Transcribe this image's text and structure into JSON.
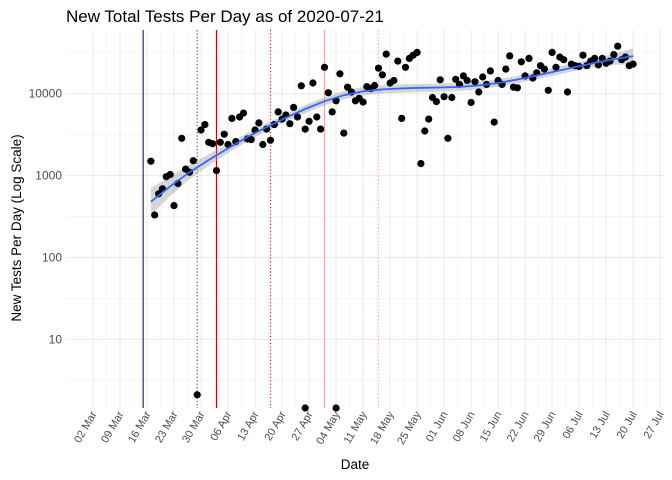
{
  "chart_data": {
    "type": "scatter",
    "title": "New Total Tests Per Day as of 2020-07-21",
    "xlabel": "Date",
    "ylabel": "New Tests Per Day (Log Scale)",
    "y_scale": "log10",
    "grid": true,
    "legend": "none",
    "x_ticks": [
      "02 Mar",
      "09 Mar",
      "16 Mar",
      "23 Mar",
      "30 Mar",
      "06 Apr",
      "13 Apr",
      "20 Apr",
      "27 Apr",
      "04 May",
      "11 May",
      "18 May",
      "25 May",
      "01 Jun",
      "08 Jun",
      "15 Jun",
      "22 Jun",
      "29 Jun",
      "06 Jul",
      "13 Jul",
      "20 Jul",
      "27 Jul"
    ],
    "x_tick_dates": [
      "2020-03-02",
      "2020-03-09",
      "2020-03-16",
      "2020-03-23",
      "2020-03-30",
      "2020-04-06",
      "2020-04-13",
      "2020-04-20",
      "2020-04-27",
      "2020-05-04",
      "2020-05-11",
      "2020-05-18",
      "2020-05-25",
      "2020-06-01",
      "2020-06-08",
      "2020-06-15",
      "2020-06-22",
      "2020-06-29",
      "2020-07-06",
      "2020-07-13",
      "2020-07-20",
      "2020-07-27"
    ],
    "y_ticks": [
      10,
      100,
      1000,
      10000
    ],
    "y_tick_labels": [
      "10",
      "100",
      "1000",
      "10000"
    ],
    "xlim": [
      "2020-02-24",
      "2020-07-28"
    ],
    "ylim": [
      1.45,
      60000
    ],
    "vlines": [
      {
        "date": "2020-03-15",
        "color": "#191970",
        "style": "solid"
      },
      {
        "date": "2020-03-29",
        "color": "#3b3b9a",
        "style": "dotted"
      },
      {
        "date": "2020-04-03",
        "color": "#cc0000",
        "style": "solid"
      },
      {
        "date": "2020-04-17",
        "color": "#cc2a2a",
        "style": "dotted"
      },
      {
        "date": "2020-05-01",
        "color": "#f2a6a6",
        "style": "solid"
      },
      {
        "date": "2020-05-15",
        "color": "#f2a6a6",
        "style": "dotted"
      }
    ],
    "points": [
      [
        "2020-03-17",
        1500
      ],
      [
        "2020-03-18",
        330
      ],
      [
        "2020-03-19",
        600
      ],
      [
        "2020-03-20",
        690
      ],
      [
        "2020-03-21",
        970
      ],
      [
        "2020-03-22",
        1030
      ],
      [
        "2020-03-23",
        430
      ],
      [
        "2020-03-24",
        800
      ],
      [
        "2020-03-25",
        2850
      ],
      [
        "2020-03-26",
        1200
      ],
      [
        "2020-03-27",
        1100
      ],
      [
        "2020-03-28",
        1520
      ],
      [
        "2020-03-29",
        2.1
      ],
      [
        "2020-03-30",
        3600
      ],
      [
        "2020-03-31",
        4200
      ],
      [
        "2020-04-01",
        2550
      ],
      [
        "2020-04-02",
        2450
      ],
      [
        "2020-04-03",
        1150
      ],
      [
        "2020-04-04",
        2550
      ],
      [
        "2020-04-05",
        3200
      ],
      [
        "2020-04-06",
        2400
      ],
      [
        "2020-04-07",
        5000
      ],
      [
        "2020-04-08",
        2600
      ],
      [
        "2020-04-09",
        5200
      ],
      [
        "2020-04-10",
        5800
      ],
      [
        "2020-04-11",
        2800
      ],
      [
        "2020-04-12",
        2750
      ],
      [
        "2020-04-13",
        3600
      ],
      [
        "2020-04-14",
        4400
      ],
      [
        "2020-04-15",
        2400
      ],
      [
        "2020-04-16",
        3700
      ],
      [
        "2020-04-17",
        2700
      ],
      [
        "2020-04-18",
        4200
      ],
      [
        "2020-04-19",
        6000
      ],
      [
        "2020-04-20",
        4900
      ],
      [
        "2020-04-21",
        5500
      ],
      [
        "2020-04-22",
        4300
      ],
      [
        "2020-04-23",
        6800
      ],
      [
        "2020-04-24",
        5200
      ],
      [
        "2020-04-25",
        12500
      ],
      [
        "2020-04-26",
        3700
      ],
      [
        "2020-04-27",
        4600
      ],
      [
        "2020-04-28",
        13500
      ],
      [
        "2020-04-29",
        5200
      ],
      [
        "2020-04-30",
        3700
      ],
      [
        "2020-05-01",
        21000
      ],
      [
        "2020-05-02",
        10300
      ],
      [
        "2020-05-03",
        6000
      ],
      [
        "2020-05-04",
        8200
      ],
      [
        "2020-05-05",
        17500
      ],
      [
        "2020-05-06",
        3300
      ],
      [
        "2020-05-07",
        12000
      ],
      [
        "2020-05-08",
        10500
      ],
      [
        "2020-05-09",
        8200
      ],
      [
        "2020-05-10",
        8800
      ],
      [
        "2020-05-11",
        7900
      ],
      [
        "2020-05-12",
        12200
      ],
      [
        "2020-05-13",
        11500
      ],
      [
        "2020-05-14",
        12600
      ],
      [
        "2020-05-15",
        20500
      ],
      [
        "2020-05-16",
        17000
      ],
      [
        "2020-05-17",
        30500
      ],
      [
        "2020-05-18",
        13500
      ],
      [
        "2020-05-19",
        14500
      ],
      [
        "2020-05-20",
        25000
      ],
      [
        "2020-05-21",
        5000
      ],
      [
        "2020-05-22",
        21000
      ],
      [
        "2020-05-23",
        27000
      ],
      [
        "2020-05-24",
        29500
      ],
      [
        "2020-05-25",
        32000
      ],
      [
        "2020-05-26",
        1400
      ],
      [
        "2020-05-27",
        3500
      ],
      [
        "2020-05-28",
        4900
      ],
      [
        "2020-05-29",
        9000
      ],
      [
        "2020-05-30",
        8000
      ],
      [
        "2020-05-31",
        14800
      ],
      [
        "2020-06-01",
        9200
      ],
      [
        "2020-06-02",
        2850
      ],
      [
        "2020-06-03",
        9000
      ],
      [
        "2020-06-04",
        15000
      ],
      [
        "2020-06-05",
        13000
      ],
      [
        "2020-06-06",
        16500
      ],
      [
        "2020-06-07",
        14500
      ],
      [
        "2020-06-08",
        7800
      ],
      [
        "2020-06-09",
        14000
      ],
      [
        "2020-06-10",
        10500
      ],
      [
        "2020-06-11",
        16000
      ],
      [
        "2020-06-12",
        13000
      ],
      [
        "2020-06-13",
        19000
      ],
      [
        "2020-06-14",
        4500
      ],
      [
        "2020-06-15",
        14500
      ],
      [
        "2020-06-16",
        13000
      ],
      [
        "2020-06-17",
        20000
      ],
      [
        "2020-06-18",
        29000
      ],
      [
        "2020-06-19",
        12000
      ],
      [
        "2020-06-20",
        11800
      ],
      [
        "2020-06-21",
        24500
      ],
      [
        "2020-06-22",
        16500
      ],
      [
        "2020-06-23",
        27000
      ],
      [
        "2020-06-24",
        15500
      ],
      [
        "2020-06-25",
        18000
      ],
      [
        "2020-06-26",
        22000
      ],
      [
        "2020-06-27",
        20000
      ],
      [
        "2020-06-28",
        11000
      ],
      [
        "2020-06-29",
        32000
      ],
      [
        "2020-06-30",
        21000
      ],
      [
        "2020-07-01",
        28000
      ],
      [
        "2020-07-02",
        26000
      ],
      [
        "2020-07-03",
        10500
      ],
      [
        "2020-07-04",
        23000
      ],
      [
        "2020-07-05",
        22000
      ],
      [
        "2020-07-06",
        21500
      ],
      [
        "2020-07-07",
        29500
      ],
      [
        "2020-07-08",
        22000
      ],
      [
        "2020-07-09",
        25000
      ],
      [
        "2020-07-10",
        27000
      ],
      [
        "2020-07-11",
        22500
      ],
      [
        "2020-07-12",
        27000
      ],
      [
        "2020-07-13",
        23500
      ],
      [
        "2020-07-14",
        25000
      ],
      [
        "2020-07-15",
        30000
      ],
      [
        "2020-07-16",
        38000
      ],
      [
        "2020-07-17",
        26000
      ],
      [
        "2020-07-18",
        28000
      ],
      [
        "2020-07-19",
        22000
      ],
      [
        "2020-07-20",
        23000
      ],
      [
        "2020-04-26",
        1.1
      ],
      [
        "2020-05-04",
        1.1
      ]
    ],
    "smooth": {
      "method": "loess",
      "color": "#3366ff",
      "band_color": "#999999",
      "points": [
        [
          "2020-03-17",
          480,
          330,
          700
        ],
        [
          "2020-03-22",
          740,
          560,
          980
        ],
        [
          "2020-03-27",
          1100,
          900,
          1350
        ],
        [
          "2020-04-01",
          1550,
          1320,
          1820
        ],
        [
          "2020-04-06",
          2150,
          1880,
          2450
        ],
        [
          "2020-04-11",
          2950,
          2620,
          3320
        ],
        [
          "2020-04-16",
          3900,
          3480,
          4380
        ],
        [
          "2020-04-21",
          5100,
          4600,
          5650
        ],
        [
          "2020-04-26",
          6500,
          5800,
          7250
        ],
        [
          "2020-05-01",
          8100,
          7200,
          9100
        ],
        [
          "2020-05-06",
          9600,
          8550,
          10800
        ],
        [
          "2020-05-11",
          10700,
          9500,
          12100
        ],
        [
          "2020-05-16",
          11300,
          10100,
          12700
        ],
        [
          "2020-05-21",
          11600,
          10300,
          13000
        ],
        [
          "2020-05-26",
          11800,
          10500,
          13200
        ],
        [
          "2020-05-31",
          11900,
          10600,
          13300
        ],
        [
          "2020-06-05",
          12100,
          10800,
          13500
        ],
        [
          "2020-06-10",
          12600,
          11300,
          14000
        ],
        [
          "2020-06-15",
          13500,
          12100,
          15000
        ],
        [
          "2020-06-20",
          14900,
          13400,
          16500
        ],
        [
          "2020-06-25",
          16700,
          15000,
          18600
        ],
        [
          "2020-06-30",
          18800,
          16900,
          21000
        ],
        [
          "2020-07-05",
          21200,
          19000,
          23700
        ],
        [
          "2020-07-10",
          23800,
          21000,
          27000
        ],
        [
          "2020-07-15",
          26300,
          22500,
          30800
        ],
        [
          "2020-07-20",
          28800,
          23000,
          36000
        ]
      ]
    }
  }
}
